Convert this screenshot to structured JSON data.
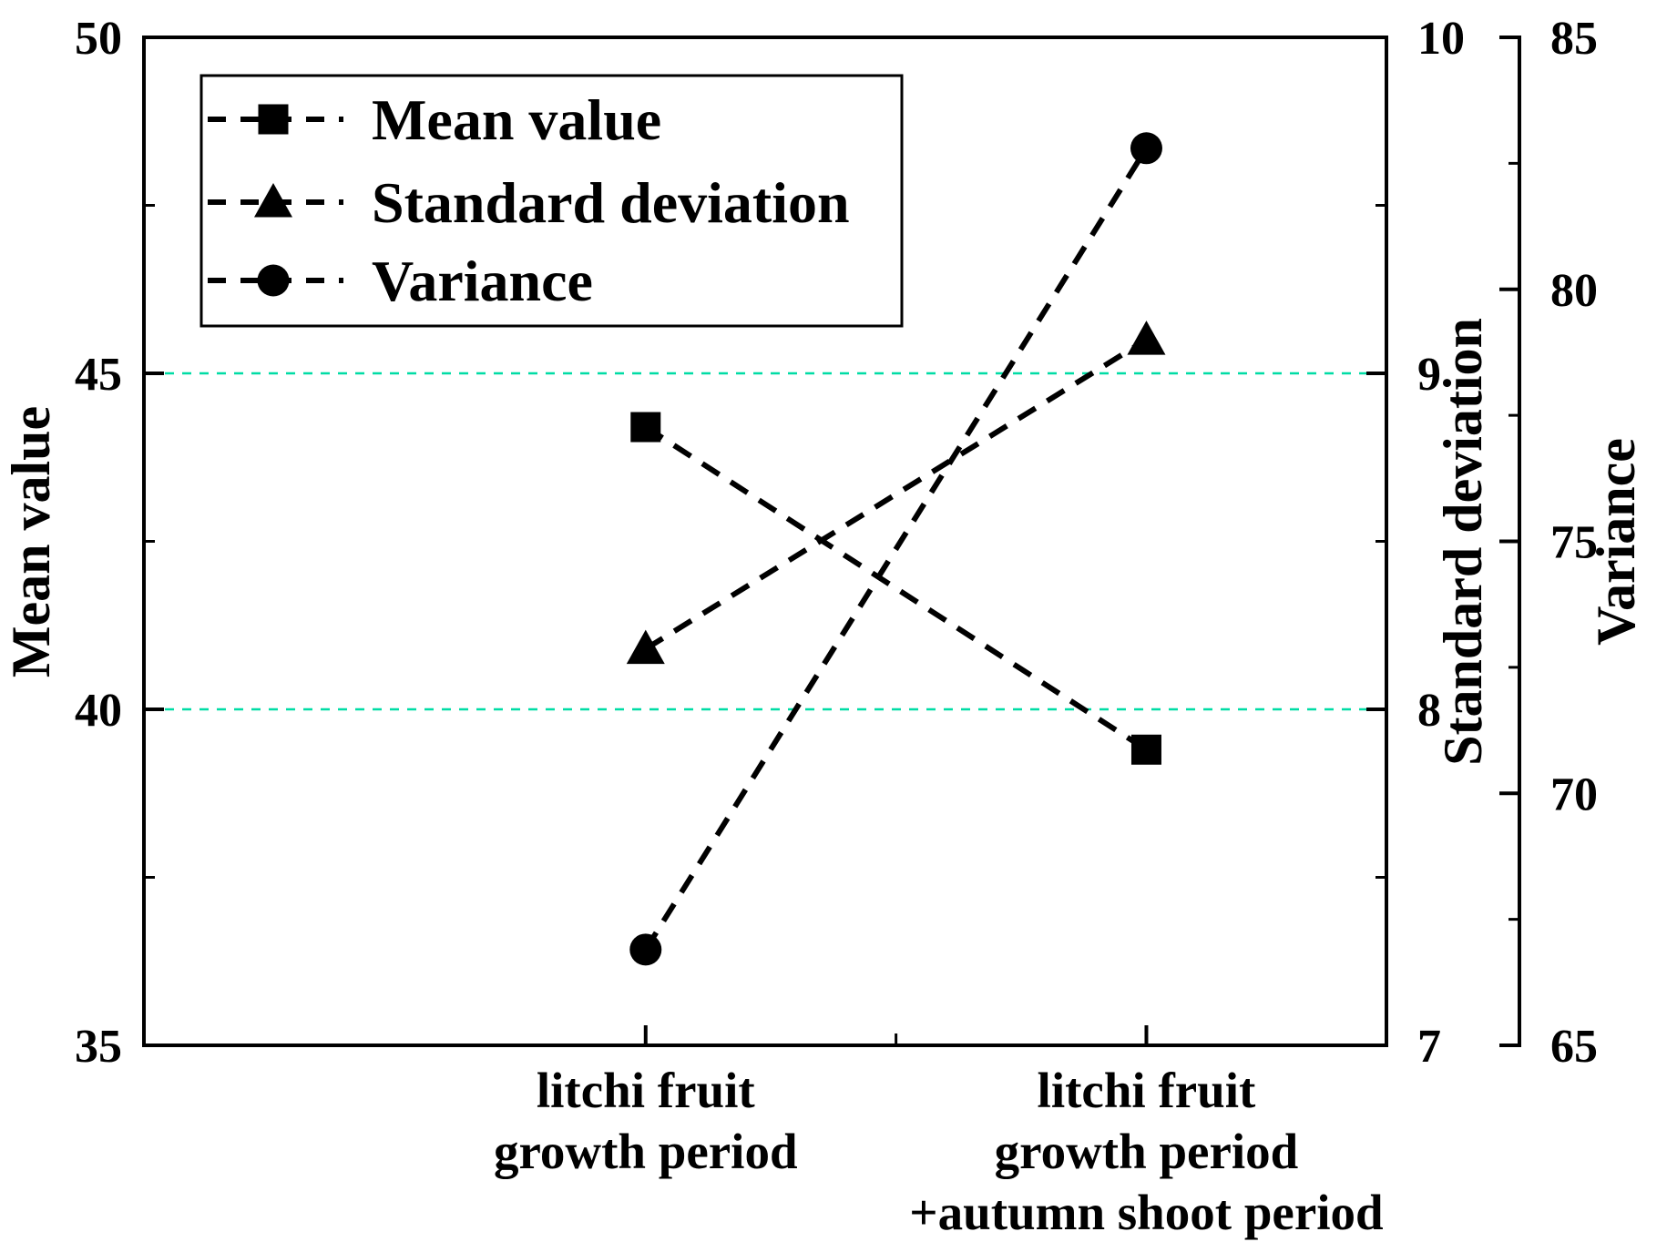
{
  "chart_data": {
    "type": "line",
    "title": "",
    "categories": [
      [
        "litchi fruit",
        "growth period"
      ],
      [
        "litchi fruit",
        "growth period",
        "+autumn shoot period"
      ]
    ],
    "series": [
      {
        "name": "Mean value",
        "axis": "mean",
        "marker": "square",
        "values": [
          44.2,
          39.4
        ]
      },
      {
        "name": "Standard deviation",
        "axis": "sd",
        "marker": "triangle",
        "values": [
          8.18,
          9.1
        ]
      },
      {
        "name": "Variance",
        "axis": "variance",
        "marker": "circle",
        "values": [
          66.9,
          82.8
        ]
      }
    ],
    "axes": {
      "mean": {
        "label": "Mean value",
        "side": "left",
        "min": 35,
        "max": 50,
        "major_ticks": [
          50,
          45,
          40,
          35
        ],
        "minor_ticks": [
          47.5,
          42.5,
          37.5
        ]
      },
      "sd": {
        "label": "Standard deviation",
        "side": "right-inner",
        "min": 7,
        "max": 10,
        "major_ticks": [
          10,
          9,
          8,
          7
        ],
        "minor_ticks": [
          9.5,
          8.5,
          7.5
        ]
      },
      "variance": {
        "label": "Variance",
        "side": "right-outer",
        "min": 65,
        "max": 85,
        "major_ticks": [
          85,
          80,
          75,
          70,
          65
        ],
        "minor_ticks": [
          82.5,
          77.5,
          72.5,
          67.5
        ]
      }
    },
    "gridlines": {
      "axis": "mean",
      "values": [
        45,
        40
      ],
      "style": "dashed",
      "color": "#00DCA5"
    },
    "legend": {
      "position": "top-left",
      "entries": [
        "Mean value",
        "Standard deviation",
        "Variance"
      ]
    },
    "line_style": "dashed",
    "colors": {
      "series": "#000000",
      "gridline": "#00DCA5",
      "background": "#FFFFFF",
      "text": "#000000"
    }
  }
}
